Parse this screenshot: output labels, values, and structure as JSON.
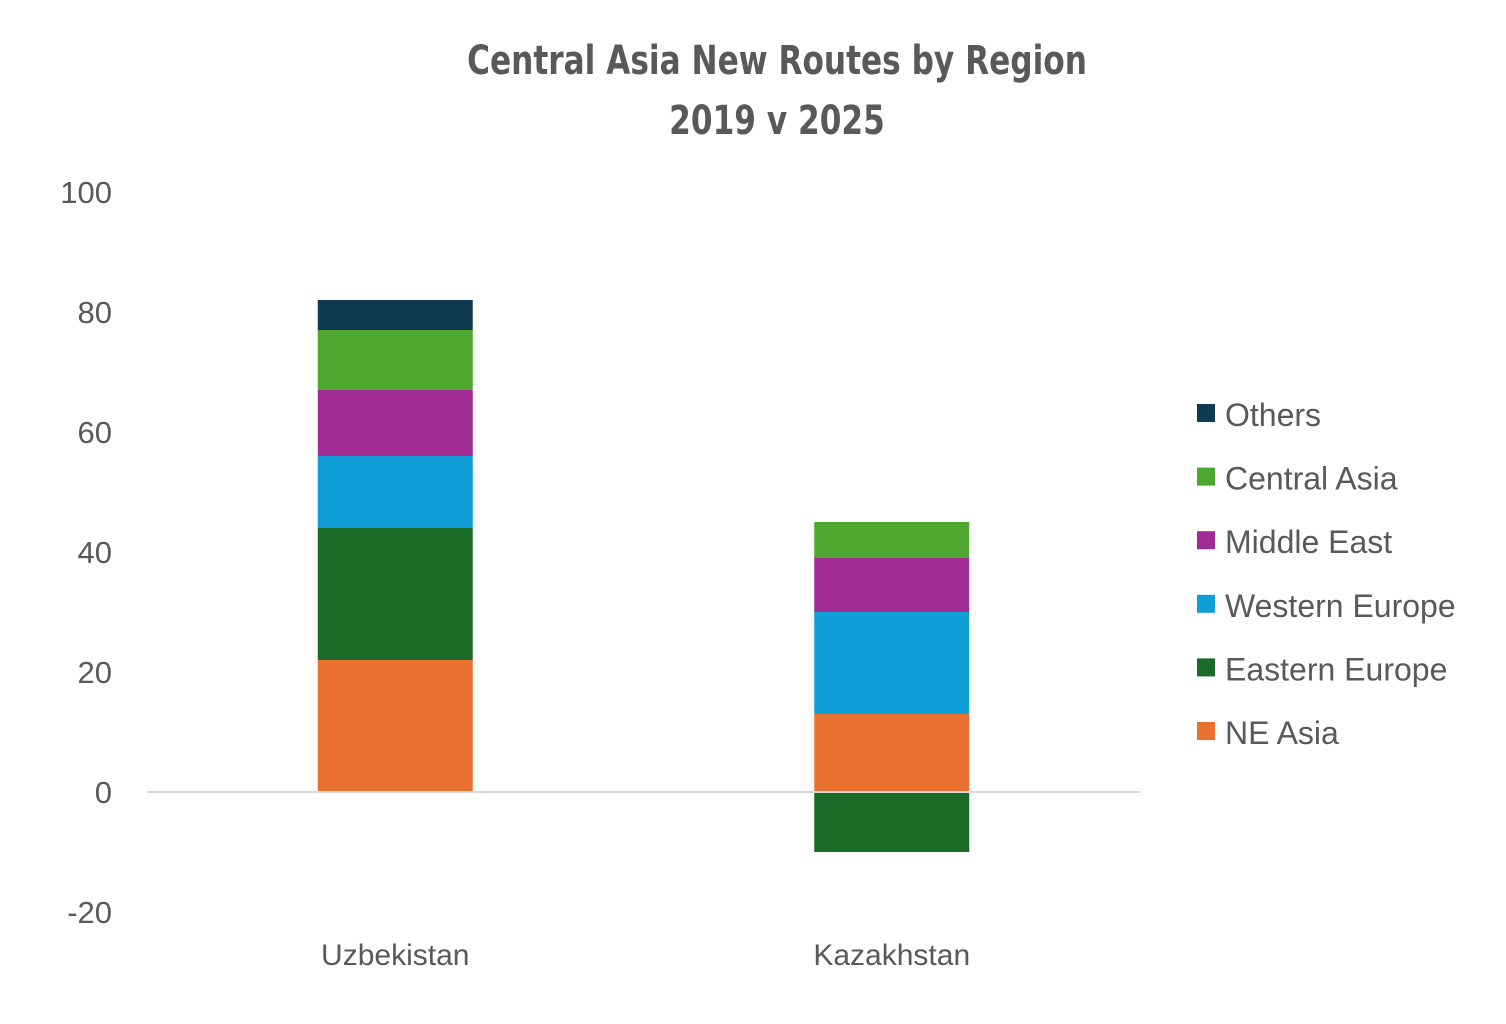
{
  "chart_data": {
    "type": "bar",
    "stacked": true,
    "title": "Central Asia New Routes by Region",
    "subtitle": "2019 v 2025",
    "xlabel": "",
    "ylabel": "",
    "ylim": [
      -20,
      100
    ],
    "yticks": [
      -20,
      0,
      20,
      40,
      60,
      80,
      100
    ],
    "ytick_labels": [
      "-20",
      "0",
      "20",
      "40",
      "60",
      "80",
      "100"
    ],
    "grid": false,
    "legend_position": "right",
    "categories": [
      "Uzbekistan",
      "Kazakhstan"
    ],
    "series": [
      {
        "name": "NE Asia",
        "color": "#e97132",
        "values": [
          22,
          13
        ]
      },
      {
        "name": "Eastern Europe",
        "color": "#1b6b28",
        "values": [
          22,
          -10
        ]
      },
      {
        "name": "Western Europe",
        "color": "#0f9ed5",
        "values": [
          12,
          17
        ]
      },
      {
        "name": "Middle East",
        "color": "#a02b93",
        "values": [
          11,
          9
        ]
      },
      {
        "name": "Central Asia",
        "color": "#4ea72e",
        "values": [
          10,
          6
        ]
      },
      {
        "name": "Others",
        "color": "#0f3a52",
        "values": [
          5,
          0
        ]
      }
    ]
  }
}
